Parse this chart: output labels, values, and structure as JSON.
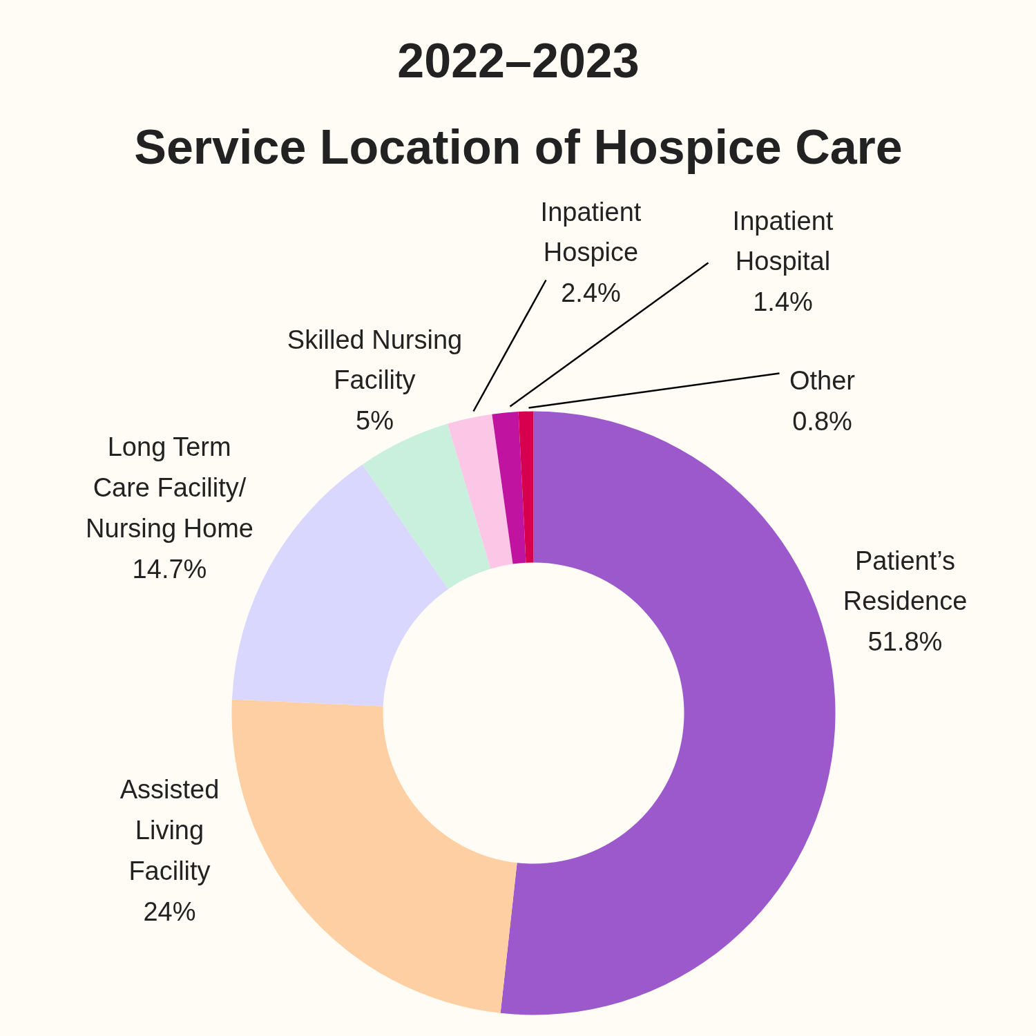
{
  "chart_data": {
    "type": "donut",
    "title": "2022–2023\nService Location of Hospice Care",
    "categories": [
      "Patient’s\nResidence",
      "Assisted\nLiving\nFacility",
      "Long Term\nCare Facility/\nNursing Home",
      "Skilled Nursing\nFacility",
      "Inpatient\nHospice",
      "Inpatient\nHospital",
      "Other"
    ],
    "values": [
      51.8,
      24,
      14.7,
      5,
      2.4,
      1.4,
      0.8
    ],
    "value_labels": [
      "51.8%",
      "24%",
      "14.7%",
      "5%",
      "2.4%",
      "1.4%",
      "0.8%"
    ],
    "colors": [
      "#9b59cb",
      "#fecfa3",
      "#d9d7fd",
      "#c9efdd",
      "#fcc7e6",
      "#c0139f",
      "#d6004f"
    ]
  }
}
